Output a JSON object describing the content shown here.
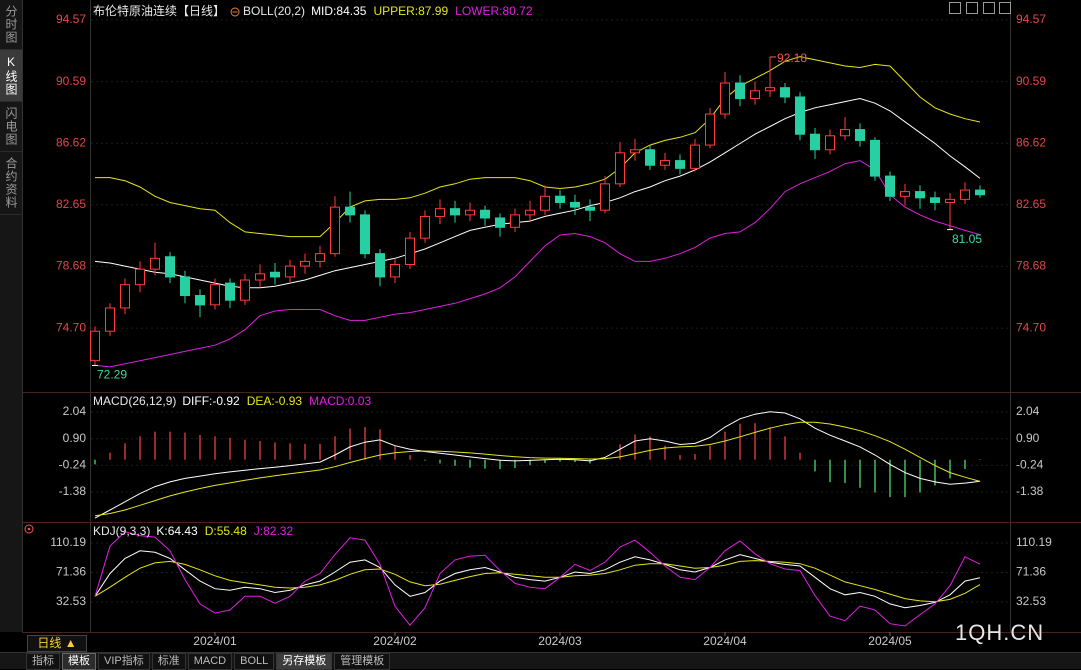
{
  "sidebar": [
    "分时图",
    "K线图",
    "闪电图",
    "合约资料"
  ],
  "period_button": "日线 ▲",
  "watermark": "1QH.CN",
  "toolbar": [
    "指标",
    "模板",
    "VIP指标",
    "标准",
    "MACD",
    "BOLL",
    "另存模板",
    "管理模板"
  ],
  "chart_data": [
    {
      "type": "candlestick",
      "title": "布伦特原油连续【日线】",
      "subtitle": "BOLL(20,2)",
      "categories": [
        null,
        null,
        null,
        null,
        null,
        null,
        null,
        null,
        "2024/01",
        null,
        null,
        null,
        null,
        null,
        null,
        null,
        null,
        null,
        null,
        null,
        "2024/02",
        null,
        null,
        null,
        null,
        null,
        null,
        null,
        null,
        null,
        null,
        "2024/03",
        null,
        null,
        null,
        null,
        null,
        null,
        null,
        null,
        null,
        null,
        "2024/04",
        null,
        null,
        null,
        null,
        null,
        null,
        null,
        null,
        null,
        null,
        "2024/05",
        null,
        null,
        null,
        null,
        null,
        null
      ],
      "open": [
        72.6,
        74.5,
        76.0,
        77.5,
        78.5,
        79.3,
        78.0,
        76.8,
        76.2,
        77.6,
        76.5,
        77.8,
        78.3,
        78.0,
        78.7,
        79.0,
        79.5,
        82.5,
        82.0,
        79.5,
        78.0,
        78.8,
        80.5,
        81.9,
        82.4,
        82.0,
        82.3,
        81.8,
        81.2,
        82.0,
        82.3,
        83.2,
        82.8,
        82.5,
        82.3,
        84.0,
        86.0,
        86.2,
        85.2,
        85.5,
        85.0,
        86.5,
        88.5,
        90.5,
        89.5,
        90.0,
        90.2,
        89.6,
        87.2,
        86.2,
        87.1,
        87.5,
        86.8,
        84.5,
        83.2,
        83.5,
        83.1,
        82.8,
        83.0,
        83.6
      ],
      "high": [
        74.8,
        76.3,
        77.9,
        79.0,
        80.2,
        79.6,
        78.4,
        77.2,
        77.9,
        77.9,
        78.2,
        78.8,
        78.9,
        79.1,
        79.5,
        80.0,
        83.2,
        83.5,
        82.3,
        79.8,
        79.2,
        80.9,
        82.3,
        83.0,
        82.9,
        82.8,
        82.6,
        82.1,
        82.4,
        82.9,
        83.9,
        83.6,
        83.3,
        83.0,
        84.5,
        86.7,
        86.9,
        86.5,
        86.0,
        85.9,
        86.9,
        88.9,
        91.2,
        91.0,
        90.6,
        92.18,
        90.5,
        89.9,
        87.6,
        87.5,
        88.3,
        87.9,
        87.0,
        84.8,
        84.0,
        83.9,
        83.5,
        83.4,
        84.1,
        83.9
      ],
      "low": [
        72.29,
        74.2,
        75.6,
        77.0,
        78.1,
        77.6,
        76.3,
        75.4,
        75.9,
        76.0,
        76.2,
        77.3,
        77.5,
        77.6,
        78.2,
        78.6,
        79.3,
        81.5,
        79.2,
        77.4,
        77.6,
        78.5,
        80.2,
        81.4,
        81.5,
        81.6,
        81.3,
        80.6,
        80.9,
        81.6,
        82.0,
        82.4,
        82.0,
        81.6,
        82.1,
        83.8,
        85.5,
        84.9,
        84.9,
        84.6,
        84.8,
        86.3,
        88.2,
        89.0,
        89.1,
        89.6,
        89.2,
        86.8,
        85.6,
        85.9,
        86.8,
        86.4,
        84.2,
        82.9,
        82.6,
        82.4,
        82.3,
        81.05,
        82.7,
        83.1
      ],
      "close": [
        74.5,
        76.0,
        77.5,
        78.5,
        79.2,
        78.0,
        76.8,
        76.2,
        77.5,
        76.5,
        77.8,
        78.2,
        78.0,
        78.7,
        79.0,
        79.5,
        82.5,
        82.0,
        79.5,
        78.0,
        78.8,
        80.5,
        81.9,
        82.4,
        82.0,
        82.3,
        81.8,
        81.2,
        82.0,
        82.3,
        83.2,
        82.8,
        82.5,
        82.3,
        84.0,
        86.0,
        86.2,
        85.2,
        85.5,
        85.0,
        86.5,
        88.5,
        90.5,
        89.5,
        90.0,
        90.2,
        89.6,
        87.2,
        86.2,
        87.1,
        87.5,
        86.8,
        84.5,
        83.2,
        83.5,
        83.1,
        82.8,
        83.0,
        83.6,
        83.3
      ],
      "up_color": "#ff3c3c",
      "down_color": "#26d0a2",
      "series": [
        {
          "name": "MID:",
          "color": "#ffffff",
          "values": [
            79.0,
            78.9,
            78.7,
            78.5,
            78.3,
            78.2,
            78.0,
            77.8,
            77.6,
            77.4,
            77.3,
            77.3,
            77.4,
            77.6,
            77.8,
            78.1,
            78.4,
            78.6,
            78.8,
            79.0,
            79.2,
            79.5,
            79.8,
            80.2,
            80.6,
            81.0,
            81.2,
            81.4,
            81.5,
            81.6,
            81.9,
            82.1,
            82.3,
            82.6,
            82.8,
            83.1,
            83.5,
            83.8,
            84.2,
            84.5,
            84.9,
            85.4,
            86.0,
            86.6,
            87.2,
            87.7,
            88.2,
            88.6,
            88.9,
            89.1,
            89.3,
            89.5,
            89.2,
            88.7,
            88.0,
            87.3,
            86.6,
            85.8,
            85.1,
            84.35
          ]
        },
        {
          "name": "UPPER:",
          "color": "#e6e619",
          "values": [
            84.4,
            84.4,
            84.2,
            83.8,
            83.2,
            82.8,
            82.6,
            82.4,
            82.3,
            81.5,
            80.9,
            80.8,
            80.7,
            80.6,
            80.6,
            80.6,
            81.5,
            82.5,
            82.9,
            83.0,
            83.0,
            83.1,
            83.4,
            83.8,
            84.0,
            84.3,
            84.4,
            84.4,
            84.4,
            84.2,
            83.8,
            83.7,
            83.8,
            84.0,
            84.3,
            85.0,
            86.0,
            86.5,
            86.8,
            87.0,
            87.3,
            88.2,
            89.5,
            90.3,
            90.8,
            91.3,
            91.9,
            92.2,
            92.0,
            91.8,
            91.6,
            91.5,
            91.7,
            91.6,
            90.6,
            89.6,
            88.9,
            88.5,
            88.2,
            87.99
          ]
        },
        {
          "name": "LOWER:",
          "color": "#e020e0",
          "values": [
            72.3,
            72.2,
            72.4,
            72.6,
            72.8,
            73.0,
            73.2,
            73.4,
            73.6,
            74.0,
            74.6,
            75.5,
            75.8,
            75.9,
            75.9,
            75.9,
            75.5,
            75.2,
            75.2,
            75.4,
            75.6,
            75.7,
            75.9,
            76.1,
            76.3,
            76.6,
            76.9,
            77.3,
            78.0,
            79.0,
            80.0,
            80.7,
            80.8,
            80.6,
            80.2,
            79.5,
            79.0,
            79.0,
            79.2,
            79.5,
            79.9,
            80.5,
            80.8,
            80.9,
            81.5,
            82.4,
            83.5,
            84.0,
            84.4,
            84.8,
            85.3,
            85.5,
            84.9,
            83.3,
            82.5,
            82.0,
            81.6,
            81.3,
            81.0,
            80.72
          ]
        }
      ],
      "annotations": [
        92.18,
        72.29,
        81.05
      ],
      "ylim": [
        70.71,
        95.53
      ],
      "yticks": [
        {
          "value": 74.7,
          "label": "74.70"
        },
        78.68,
        82.65,
        86.62,
        90.59,
        94.57
      ]
    },
    {
      "type": "macd",
      "title": "MACD(26,12,9)",
      "up_color": "#ff4646",
      "down_color": "#55ee77",
      "series": [
        {
          "name": "DIFF:",
          "color": "#ffffff",
          "values": [
            -2.5,
            -2.15,
            -1.8,
            -1.45,
            -1.15,
            -0.95,
            -0.8,
            -0.7,
            -0.6,
            -0.52,
            -0.45,
            -0.38,
            -0.32,
            -0.25,
            -0.18,
            -0.1,
            0.2,
            0.55,
            0.75,
            0.85,
            0.6,
            0.45,
            0.35,
            0.28,
            0.2,
            0.12,
            0.05,
            -0.02,
            -0.05,
            -0.03,
            0.0,
            0.02,
            0.0,
            -0.05,
            0.1,
            0.45,
            0.8,
            0.9,
            0.8,
            0.65,
            0.7,
            0.95,
            1.4,
            1.75,
            1.95,
            2.05,
            2.0,
            1.75,
            1.35,
            1.05,
            0.8,
            0.55,
            0.2,
            -0.2,
            -0.55,
            -0.8,
            -0.95,
            -1.05,
            -1.0,
            -0.92
          ]
        },
        {
          "name": "DEA:",
          "color": "#e6e619",
          "values": [
            -2.4,
            -2.3,
            -2.15,
            -1.95,
            -1.75,
            -1.55,
            -1.38,
            -1.23,
            -1.1,
            -0.99,
            -0.88,
            -0.78,
            -0.69,
            -0.6,
            -0.52,
            -0.44,
            -0.3,
            -0.12,
            0.05,
            0.2,
            0.3,
            0.35,
            0.37,
            0.36,
            0.33,
            0.29,
            0.24,
            0.18,
            0.13,
            0.09,
            0.07,
            0.06,
            0.05,
            0.03,
            0.04,
            0.12,
            0.26,
            0.4,
            0.5,
            0.55,
            0.58,
            0.65,
            0.8,
            0.98,
            1.17,
            1.35,
            1.5,
            1.6,
            1.6,
            1.53,
            1.4,
            1.24,
            1.03,
            0.77,
            0.45,
            0.1,
            -0.25,
            -0.55,
            -0.75,
            -0.93
          ]
        },
        {
          "name": "MACD:",
          "color": "#e020e0",
          "type": "bar",
          "values": [
            -0.2,
            0.3,
            0.7,
            1.0,
            1.2,
            1.2,
            1.16,
            1.06,
            1.0,
            0.94,
            0.86,
            0.8,
            0.74,
            0.7,
            0.68,
            0.68,
            1.0,
            1.34,
            1.4,
            1.3,
            0.6,
            0.2,
            -0.04,
            -0.16,
            -0.26,
            -0.34,
            -0.38,
            -0.4,
            -0.36,
            -0.24,
            -0.14,
            -0.08,
            -0.1,
            -0.16,
            0.12,
            0.66,
            1.08,
            1.0,
            0.6,
            0.2,
            0.24,
            0.6,
            1.2,
            1.54,
            1.56,
            1.4,
            1.0,
            0.3,
            -0.5,
            -0.96,
            -1.0,
            -1.2,
            -1.4,
            -1.6,
            -1.6,
            -1.4,
            -1.1,
            -0.8,
            -0.4,
            0.03
          ]
        }
      ],
      "ylim": [
        -2.58,
        2.77
      ],
      "yticks": [
        -1.38,
        -0.24,
        {
          "value": 0.9,
          "label": "0.90"
        },
        2.04
      ]
    },
    {
      "type": "line",
      "title": "KDJ(9,3,3)",
      "series": [
        {
          "name": "K:",
          "color": "#ffffff",
          "values": [
            40,
            70,
            90,
            100,
            98,
            90,
            75,
            60,
            50,
            48,
            52,
            50,
            45,
            48,
            55,
            60,
            72,
            85,
            88,
            78,
            55,
            40,
            45,
            60,
            70,
            75,
            78,
            72,
            65,
            62,
            60,
            65,
            72,
            70,
            75,
            85,
            92,
            88,
            82,
            75,
            72,
            78,
            88,
            95,
            90,
            85,
            82,
            80,
            65,
            50,
            42,
            45,
            40,
            30,
            25,
            28,
            32,
            42,
            60,
            64.43
          ]
        },
        {
          "name": "D:",
          "color": "#e6e619",
          "values": [
            40,
            52,
            65,
            77,
            84,
            86,
            82,
            75,
            67,
            61,
            58,
            55,
            52,
            51,
            52,
            55,
            61,
            69,
            75,
            76,
            69,
            59,
            54,
            56,
            61,
            66,
            70,
            71,
            69,
            67,
            65,
            65,
            67,
            68,
            70,
            75,
            81,
            83,
            83,
            80,
            77,
            78,
            81,
            86,
            87,
            86,
            85,
            83,
            77,
            68,
            59,
            54,
            49,
            43,
            37,
            34,
            33,
            36,
            44,
            55.48
          ]
        },
        {
          "name": "J:",
          "color": "#e020e0",
          "values": [
            40,
            106,
            125,
            120,
            118,
            100,
            62,
            30,
            18,
            22,
            40,
            40,
            31,
            40,
            60,
            70,
            95,
            117,
            114,
            82,
            27,
            2,
            25,
            70,
            88,
            93,
            94,
            74,
            57,
            52,
            50,
            65,
            82,
            74,
            85,
            105,
            114,
            98,
            80,
            65,
            62,
            78,
            100,
            113,
            96,
            83,
            76,
            74,
            41,
            14,
            8,
            27,
            22,
            4,
            1,
            16,
            30,
            54,
            92,
            82.32
          ]
        }
      ],
      "ylim": [
        -4.3,
        133.9
      ],
      "yticks": [
        32.53,
        71.36,
        110.19
      ]
    }
  ]
}
